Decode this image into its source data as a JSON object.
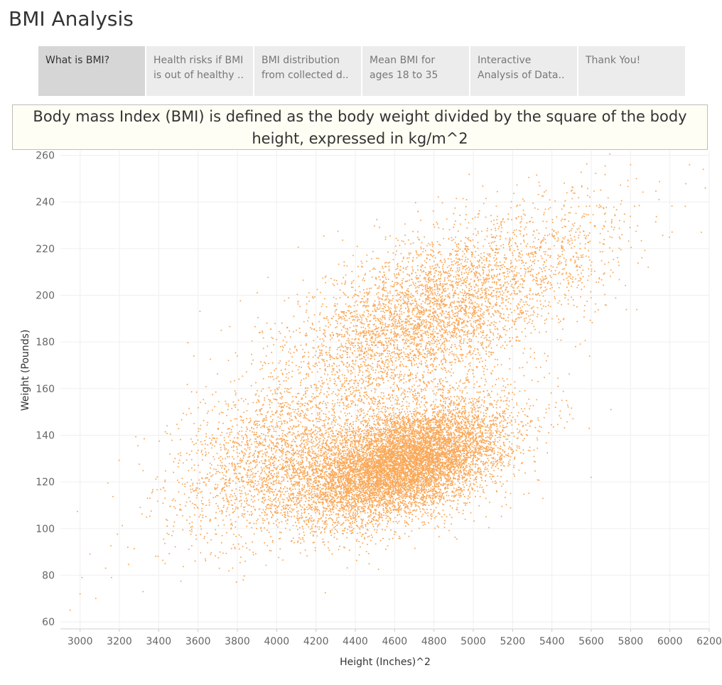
{
  "app": {
    "title": "BMI Analysis"
  },
  "tabs": [
    {
      "line1": "What is BMI?",
      "line2": "",
      "active": true
    },
    {
      "line1": "Health risks if BMI",
      "line2": "is out of healthy ..",
      "active": false
    },
    {
      "line1": "BMI distribution",
      "line2": "from collected d..",
      "active": false
    },
    {
      "line1": "Mean BMI for",
      "line2": "ages 18 to 35",
      "active": false
    },
    {
      "line1": "Interactive",
      "line2": "Analysis of Data..",
      "active": false
    },
    {
      "line1": "Thank You!",
      "line2": "",
      "active": false
    }
  ],
  "banner": {
    "text": "Body mass Index (BMI) is defined as the body weight divided by the square of the body height, expressed in kg/m^2"
  },
  "chart_data": {
    "type": "scatter",
    "xlabel": "Height (Inches)^2",
    "ylabel": "Weight (Pounds)",
    "xlim": [
      2900,
      6200
    ],
    "ylim": [
      57,
      262
    ],
    "xticks": [
      3000,
      3200,
      3400,
      3600,
      3800,
      4000,
      4200,
      4400,
      4600,
      4800,
      5000,
      5200,
      5400,
      5600,
      5800,
      6000,
      6200
    ],
    "yticks": [
      60,
      80,
      100,
      120,
      140,
      160,
      180,
      200,
      220,
      240,
      260
    ],
    "grid": true,
    "point_color": "#f9a95a",
    "clusters": [
      {
        "center": [
          4650,
          128
        ],
        "spread": [
          260,
          11
        ],
        "count": 9000
      },
      {
        "center": [
          4750,
          190
        ],
        "spread": [
          330,
          17
        ],
        "count": 4000
      },
      {
        "center": [
          4050,
          132
        ],
        "spread": [
          300,
          16
        ],
        "count": 2500
      },
      {
        "center": [
          5350,
          215
        ],
        "spread": [
          260,
          14
        ],
        "count": 600
      }
    ],
    "outliers": [
      [
        2950,
        65
      ],
      [
        3000,
        72
      ],
      [
        3080,
        70
      ],
      [
        3010,
        79
      ],
      [
        3050,
        89
      ],
      [
        3130,
        83
      ],
      [
        3160,
        79
      ],
      [
        3320,
        73
      ],
      [
        3830,
        78
      ],
      [
        5800,
        256
      ],
      [
        5830,
        250
      ],
      [
        6100,
        256
      ],
      [
        6170,
        254
      ],
      [
        6180,
        246
      ],
      [
        6160,
        227
      ],
      [
        5890,
        212
      ],
      [
        5600,
        122
      ],
      [
        5590,
        143
      ],
      [
        4690,
        106
      ],
      [
        4960,
        110
      ],
      [
        3800,
        174
      ],
      [
        4100,
        185
      ],
      [
        5520,
        178
      ],
      [
        5700,
        151
      ]
    ]
  }
}
